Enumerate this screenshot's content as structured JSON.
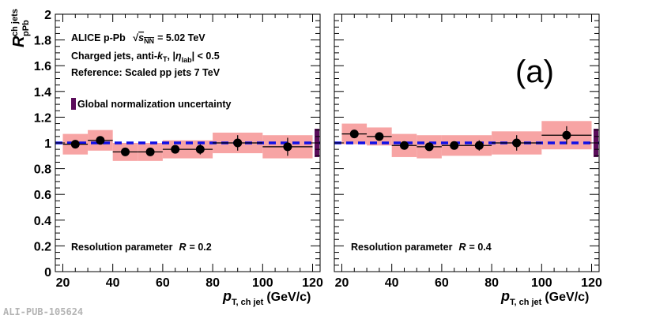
{
  "chart_data": [
    {
      "type": "scatter",
      "panel": "left",
      "xlabel_main": "p",
      "xlabel_sub": "T, ch jet",
      "xlabel_unit": "(GeV/c)",
      "ylabel_main": "R",
      "ylabel_sup": "ch jets",
      "ylabel_sub": "pPb",
      "xlim": [
        17,
        123
      ],
      "ylim": [
        0,
        2
      ],
      "x_ticks": [
        20,
        40,
        60,
        80,
        100,
        120
      ],
      "y_ticks": [
        0,
        0.2,
        0.4,
        0.6,
        0.8,
        1,
        1.2,
        1.4,
        1.6,
        1.8,
        2
      ],
      "reference_line": 1,
      "annotations": {
        "line1_prefix": "ALICE p-Pb",
        "line1_sqrt_sub": "NN",
        "line1_value": "= 5.02 TeV",
        "line2_prefix": "Charged jets, anti-",
        "line2_k": "k",
        "line2_ksub": "T",
        "line2_eta_sub": "lab",
        "line2_value": "< 0.5",
        "line3": "Reference: Scaled pp jets 7 TeV",
        "legend_global": "Global normalization uncertainty",
        "resolution_label": "Resolution parameter",
        "resolution_value": "= 0.2"
      },
      "global_uncertainty": [
        0.89,
        1.11
      ],
      "points": [
        {
          "x": 25,
          "xlo": 20,
          "xhi": 30,
          "y": 0.99,
          "stat": 0.02,
          "sys": 0.08
        },
        {
          "x": 35,
          "xlo": 30,
          "xhi": 40,
          "y": 1.02,
          "stat": 0.02,
          "sys": 0.08
        },
        {
          "x": 45,
          "xlo": 40,
          "xhi": 50,
          "y": 0.93,
          "stat": 0.02,
          "sys": 0.07
        },
        {
          "x": 55,
          "xlo": 50,
          "xhi": 60,
          "y": 0.93,
          "stat": 0.02,
          "sys": 0.07
        },
        {
          "x": 65,
          "xlo": 60,
          "xhi": 70,
          "y": 0.95,
          "stat": 0.03,
          "sys": 0.07
        },
        {
          "x": 75,
          "xlo": 70,
          "xhi": 80,
          "y": 0.95,
          "stat": 0.04,
          "sys": 0.07
        },
        {
          "x": 90,
          "xlo": 80,
          "xhi": 100,
          "y": 1.0,
          "stat": 0.06,
          "sys": 0.08
        },
        {
          "x": 110,
          "xlo": 100,
          "xhi": 120,
          "y": 0.97,
          "stat": 0.07,
          "sys": 0.09
        }
      ]
    },
    {
      "type": "scatter",
      "panel": "right",
      "xlim": [
        17,
        123
      ],
      "ylim": [
        0,
        2
      ],
      "x_ticks": [
        20,
        40,
        60,
        80,
        100,
        120
      ],
      "reference_line": 1,
      "annotations": {
        "panel_tag": "(a)",
        "resolution_label": "Resolution parameter",
        "resolution_value": "= 0.4"
      },
      "global_uncertainty": [
        0.89,
        1.11
      ],
      "points": [
        {
          "x": 25,
          "xlo": 20,
          "xhi": 30,
          "y": 1.07,
          "stat": 0.02,
          "sys": 0.08
        },
        {
          "x": 35,
          "xlo": 30,
          "xhi": 40,
          "y": 1.05,
          "stat": 0.02,
          "sys": 0.07
        },
        {
          "x": 45,
          "xlo": 40,
          "xhi": 50,
          "y": 0.98,
          "stat": 0.02,
          "sys": 0.09
        },
        {
          "x": 55,
          "xlo": 50,
          "xhi": 60,
          "y": 0.97,
          "stat": 0.02,
          "sys": 0.09
        },
        {
          "x": 65,
          "xlo": 60,
          "xhi": 70,
          "y": 0.98,
          "stat": 0.03,
          "sys": 0.08
        },
        {
          "x": 75,
          "xlo": 70,
          "xhi": 80,
          "y": 0.98,
          "stat": 0.04,
          "sys": 0.08
        },
        {
          "x": 90,
          "xlo": 80,
          "xhi": 100,
          "y": 1.0,
          "stat": 0.06,
          "sys": 0.09
        },
        {
          "x": 110,
          "xlo": 100,
          "xhi": 120,
          "y": 1.06,
          "stat": 0.07,
          "sys": 0.11
        }
      ]
    }
  ],
  "footer": "ALI-PUB-105624",
  "colors": {
    "sys_box": "#f7a4a4",
    "ref_line": "#1010e6",
    "global_bar": "#5a0c5a",
    "marker": "#000000"
  }
}
